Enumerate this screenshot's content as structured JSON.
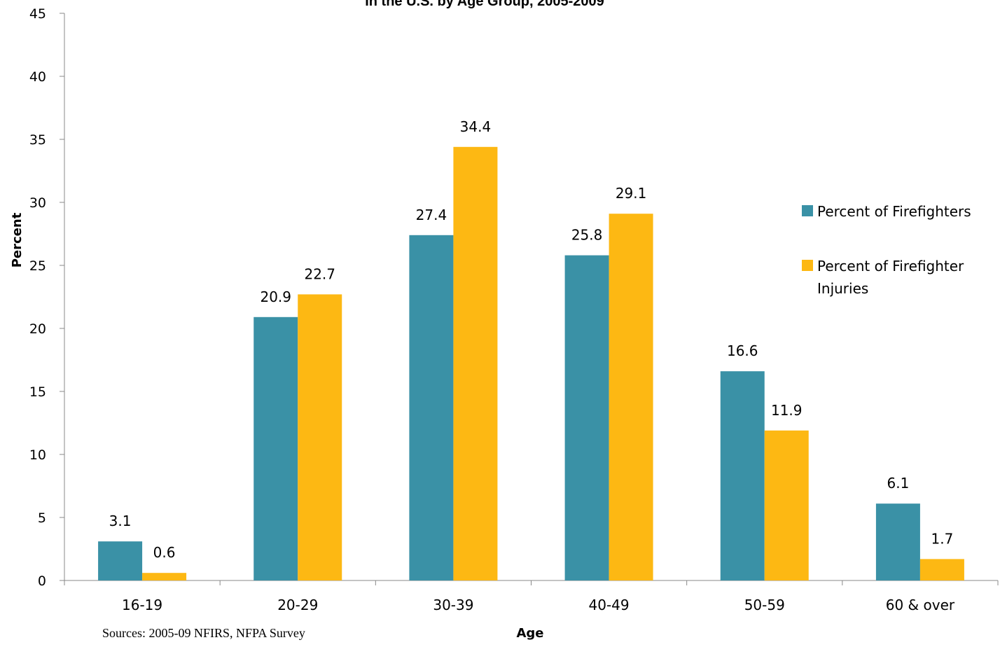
{
  "chart_data": {
    "type": "bar",
    "title": "In the U.S. by Age Group, 2005-2009",
    "xlabel": "Age",
    "ylabel": "Percent",
    "ylim": [
      0,
      45
    ],
    "yticks": [
      0,
      5,
      10,
      15,
      20,
      25,
      30,
      35,
      40,
      45
    ],
    "categories": [
      "16-19",
      "20-29",
      "30-39",
      "40-49",
      "50-59",
      "60 & over"
    ],
    "series": [
      {
        "name": "Percent of Firefighters",
        "color": "#3A91A6",
        "values": [
          3.1,
          20.9,
          27.4,
          25.8,
          16.6,
          6.1
        ]
      },
      {
        "name": "Percent of Firefighter Injuries",
        "color": "#FDB813",
        "values": [
          0.6,
          22.7,
          34.4,
          29.1,
          11.9,
          1.7
        ]
      }
    ],
    "legend_position": "right",
    "grid": false,
    "data_labels": true
  },
  "legend": {
    "item1": "Percent of Firefighters",
    "item2_line1": "Percent of Firefighter",
    "item2_line2": "Injuries"
  },
  "source_note": "Sources: 2005-09 NFIRS, NFPA Survey"
}
